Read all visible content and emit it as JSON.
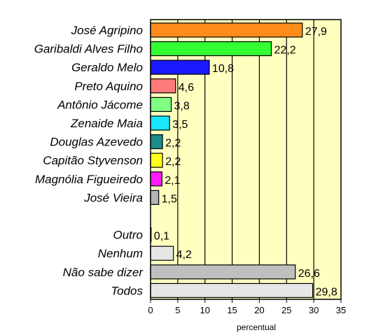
{
  "chart_data": {
    "type": "bar",
    "orientation": "horizontal",
    "xlabel": "percentual",
    "xlim": [
      0,
      35
    ],
    "xticks": [
      "0",
      "5",
      "10",
      "15",
      "20",
      "25",
      "30",
      "35"
    ],
    "grid": "vertical",
    "plot_background": "#ffffc0",
    "bars": [
      {
        "category": "José Agripino",
        "value": 27.9,
        "label": "27,9",
        "color": "#ff8c1a"
      },
      {
        "category": "Garibaldi Alves Filho",
        "value": 22.2,
        "label": "22,2",
        "color": "#33ff33"
      },
      {
        "category": "Geraldo Melo",
        "value": 10.8,
        "label": "10,8",
        "color": "#1a1aff"
      },
      {
        "category": "Preto Aquino",
        "value": 4.6,
        "label": "4,6",
        "color": "#ff7a7a"
      },
      {
        "category": "Antônio Jácome",
        "value": 3.8,
        "label": "3,8",
        "color": "#80ff80"
      },
      {
        "category": "Zenaide Maia",
        "value": 3.5,
        "label": "3,5",
        "color": "#1ae6ff"
      },
      {
        "category": "Douglas Azevedo",
        "value": 2.2,
        "label": "2,2",
        "color": "#1a8c8c"
      },
      {
        "category": "Capitão Styvenson",
        "value": 2.2,
        "label": "2,2",
        "color": "#ffff1a"
      },
      {
        "category": "Magnólia Figueiredo",
        "value": 2.1,
        "label": "2,1",
        "color": "#ff1aff"
      },
      {
        "category": "José Vieira",
        "value": 1.5,
        "label": "1,5",
        "color": "#b3b3b3"
      },
      {
        "category": "",
        "value": null,
        "label": "",
        "color": ""
      },
      {
        "category": "Outro",
        "value": 0.1,
        "label": "0,1",
        "color": "#8c8c8c"
      },
      {
        "category": "Nenhum",
        "value": 4.2,
        "label": "4,2",
        "color": "#e6e6e6"
      },
      {
        "category": "Não sabe dizer",
        "value": 26.6,
        "label": "26,6",
        "color": "#bfbfbf"
      },
      {
        "category": "Todos",
        "value": 29.8,
        "label": "29,8",
        "color": "#e6e6e6"
      }
    ]
  }
}
